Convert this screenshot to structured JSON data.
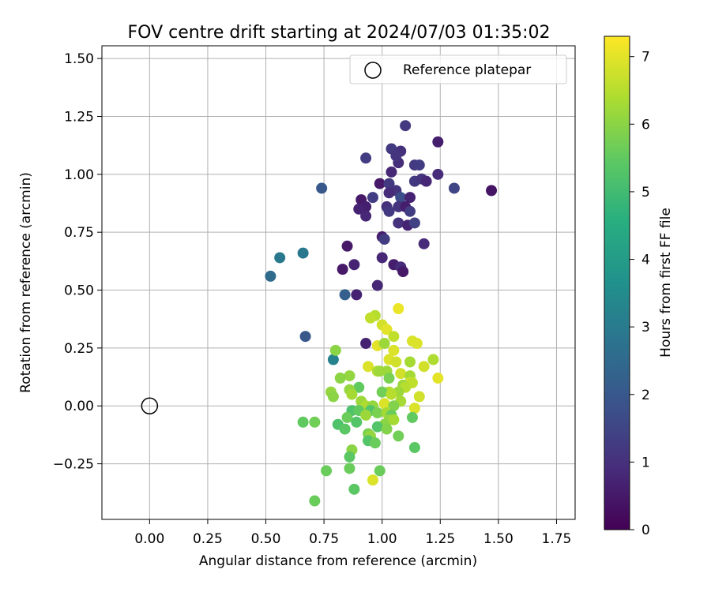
{
  "chart_data": {
    "type": "scatter",
    "title": "FOV centre drift starting at 2024/07/03 01:35:02",
    "xlabel": "Angular distance from reference (arcmin)",
    "ylabel": "Rotation from reference (arcmin)",
    "xlim": [
      -0.205,
      1.83
    ],
    "ylim": [
      -0.49,
      1.555
    ],
    "xticks": [
      "0.00",
      "0.25",
      "0.50",
      "0.75",
      "1.00",
      "1.25",
      "1.50",
      "1.75"
    ],
    "xtick_values": [
      0,
      0.25,
      0.5,
      0.75,
      1.0,
      1.25,
      1.5,
      1.75
    ],
    "yticks": [
      "−0.25",
      "0.00",
      "0.25",
      "0.50",
      "0.75",
      "1.00",
      "1.25",
      "1.50"
    ],
    "ytick_values": [
      -0.25,
      0,
      0.25,
      0.5,
      0.75,
      1.0,
      1.25,
      1.5
    ],
    "grid": true,
    "legend": {
      "position": "top-right",
      "entries": [
        "Reference platepar"
      ]
    },
    "reference_point": {
      "x": 0.0,
      "y": 0.0
    },
    "colorbar": {
      "label": "Hours from first FF file",
      "colormap": "viridis",
      "range": [
        0,
        7.3
      ],
      "ticks": [
        "0",
        "1",
        "2",
        "3",
        "4",
        "5",
        "6",
        "7"
      ],
      "tick_values": [
        0,
        1,
        2,
        3,
        4,
        5,
        6,
        7
      ]
    },
    "points": [
      {
        "x": 1.1,
        "y": 1.21,
        "c": 1.2
      },
      {
        "x": 1.24,
        "y": 1.14,
        "c": 0.6
      },
      {
        "x": 1.04,
        "y": 1.11,
        "c": 1.2
      },
      {
        "x": 1.08,
        "y": 1.1,
        "c": 1.0
      },
      {
        "x": 1.07,
        "y": 1.05,
        "c": 0.9
      },
      {
        "x": 0.93,
        "y": 1.07,
        "c": 1.3
      },
      {
        "x": 1.06,
        "y": 1.08,
        "c": 1.1
      },
      {
        "x": 1.04,
        "y": 1.01,
        "c": 0.8
      },
      {
        "x": 1.14,
        "y": 1.04,
        "c": 1.2
      },
      {
        "x": 1.16,
        "y": 1.04,
        "c": 1.3
      },
      {
        "x": 1.24,
        "y": 1.0,
        "c": 0.9
      },
      {
        "x": 1.14,
        "y": 0.97,
        "c": 1.2
      },
      {
        "x": 1.17,
        "y": 0.98,
        "c": 1.1
      },
      {
        "x": 1.19,
        "y": 0.97,
        "c": 0.8
      },
      {
        "x": 1.31,
        "y": 0.94,
        "c": 1.5
      },
      {
        "x": 0.74,
        "y": 0.94,
        "c": 2.0
      },
      {
        "x": 1.47,
        "y": 0.93,
        "c": 0.4
      },
      {
        "x": 0.99,
        "y": 0.96,
        "c": 0.5
      },
      {
        "x": 1.03,
        "y": 0.96,
        "c": 1.2
      },
      {
        "x": 1.06,
        "y": 0.93,
        "c": 1.1
      },
      {
        "x": 1.03,
        "y": 0.92,
        "c": 0.9
      },
      {
        "x": 1.08,
        "y": 0.9,
        "c": 1.7
      },
      {
        "x": 1.12,
        "y": 0.9,
        "c": 0.7
      },
      {
        "x": 0.96,
        "y": 0.9,
        "c": 1.3
      },
      {
        "x": 0.91,
        "y": 0.89,
        "c": 0.5
      },
      {
        "x": 0.93,
        "y": 0.86,
        "c": 0.6
      },
      {
        "x": 0.9,
        "y": 0.85,
        "c": 0.7
      },
      {
        "x": 1.02,
        "y": 0.86,
        "c": 1.0
      },
      {
        "x": 1.07,
        "y": 0.86,
        "c": 1.1
      },
      {
        "x": 1.1,
        "y": 0.86,
        "c": 0.6
      },
      {
        "x": 1.12,
        "y": 0.84,
        "c": 1.3
      },
      {
        "x": 0.93,
        "y": 0.82,
        "c": 0.8
      },
      {
        "x": 1.03,
        "y": 0.84,
        "c": 1.2
      },
      {
        "x": 1.07,
        "y": 0.79,
        "c": 1.0
      },
      {
        "x": 1.11,
        "y": 0.78,
        "c": 0.7
      },
      {
        "x": 1.14,
        "y": 0.79,
        "c": 1.4
      },
      {
        "x": 1.0,
        "y": 0.73,
        "c": 0.6
      },
      {
        "x": 1.01,
        "y": 0.72,
        "c": 1.3
      },
      {
        "x": 1.18,
        "y": 0.7,
        "c": 0.9
      },
      {
        "x": 0.85,
        "y": 0.69,
        "c": 0.5
      },
      {
        "x": 1.0,
        "y": 0.64,
        "c": 0.8
      },
      {
        "x": 1.05,
        "y": 0.61,
        "c": 0.6
      },
      {
        "x": 1.08,
        "y": 0.6,
        "c": 0.9
      },
      {
        "x": 1.09,
        "y": 0.58,
        "c": 0.5
      },
      {
        "x": 0.88,
        "y": 0.61,
        "c": 0.7
      },
      {
        "x": 0.83,
        "y": 0.59,
        "c": 0.5
      },
      {
        "x": 0.98,
        "y": 0.52,
        "c": 0.8
      },
      {
        "x": 0.89,
        "y": 0.48,
        "c": 0.7
      },
      {
        "x": 0.84,
        "y": 0.48,
        "c": 2.2
      },
      {
        "x": 0.66,
        "y": 0.66,
        "c": 2.9
      },
      {
        "x": 0.56,
        "y": 0.64,
        "c": 2.9
      },
      {
        "x": 0.52,
        "y": 0.56,
        "c": 2.5
      },
      {
        "x": 0.67,
        "y": 0.3,
        "c": 2.0
      },
      {
        "x": 0.93,
        "y": 0.27,
        "c": 0.7
      },
      {
        "x": 0.79,
        "y": 0.2,
        "c": 3.2
      },
      {
        "x": 1.07,
        "y": 0.42,
        "c": 7.1
      },
      {
        "x": 0.97,
        "y": 0.39,
        "c": 6.5
      },
      {
        "x": 0.95,
        "y": 0.38,
        "c": 6.6
      },
      {
        "x": 1.0,
        "y": 0.35,
        "c": 6.8
      },
      {
        "x": 1.02,
        "y": 0.33,
        "c": 7.0
      },
      {
        "x": 1.05,
        "y": 0.3,
        "c": 6.6
      },
      {
        "x": 1.13,
        "y": 0.28,
        "c": 6.9
      },
      {
        "x": 1.15,
        "y": 0.27,
        "c": 6.9
      },
      {
        "x": 0.98,
        "y": 0.26,
        "c": 7.0
      },
      {
        "x": 1.01,
        "y": 0.27,
        "c": 6.2
      },
      {
        "x": 1.05,
        "y": 0.24,
        "c": 6.9
      },
      {
        "x": 0.8,
        "y": 0.24,
        "c": 6.0
      },
      {
        "x": 1.03,
        "y": 0.2,
        "c": 6.9
      },
      {
        "x": 1.06,
        "y": 0.19,
        "c": 6.8
      },
      {
        "x": 1.12,
        "y": 0.19,
        "c": 6.3
      },
      {
        "x": 1.18,
        "y": 0.17,
        "c": 6.8
      },
      {
        "x": 1.22,
        "y": 0.2,
        "c": 6.4
      },
      {
        "x": 0.94,
        "y": 0.17,
        "c": 6.9
      },
      {
        "x": 0.98,
        "y": 0.15,
        "c": 6.4
      },
      {
        "x": 0.99,
        "y": 0.15,
        "c": 6.2
      },
      {
        "x": 1.02,
        "y": 0.15,
        "c": 6.2
      },
      {
        "x": 1.08,
        "y": 0.14,
        "c": 6.8
      },
      {
        "x": 1.12,
        "y": 0.13,
        "c": 6.3
      },
      {
        "x": 0.86,
        "y": 0.13,
        "c": 6.1
      },
      {
        "x": 0.82,
        "y": 0.12,
        "c": 6.0
      },
      {
        "x": 1.03,
        "y": 0.12,
        "c": 5.8
      },
      {
        "x": 1.24,
        "y": 0.12,
        "c": 7.0
      },
      {
        "x": 1.12,
        "y": 0.1,
        "c": 6.8
      },
      {
        "x": 1.13,
        "y": 0.1,
        "c": 6.6
      },
      {
        "x": 1.09,
        "y": 0.09,
        "c": 6.2
      },
      {
        "x": 1.1,
        "y": 0.08,
        "c": 6.5
      },
      {
        "x": 0.9,
        "y": 0.08,
        "c": 5.5
      },
      {
        "x": 0.86,
        "y": 0.07,
        "c": 6.1
      },
      {
        "x": 1.07,
        "y": 0.06,
        "c": 6.2
      },
      {
        "x": 1.03,
        "y": 0.06,
        "c": 6.4
      },
      {
        "x": 0.78,
        "y": 0.06,
        "c": 6.1
      },
      {
        "x": 1.0,
        "y": 0.06,
        "c": 5.7
      },
      {
        "x": 1.04,
        "y": 0.05,
        "c": 6.5
      },
      {
        "x": 0.87,
        "y": 0.05,
        "c": 6.3
      },
      {
        "x": 1.16,
        "y": 0.04,
        "c": 6.8
      },
      {
        "x": 0.79,
        "y": 0.04,
        "c": 6.0
      },
      {
        "x": 0.91,
        "y": 0.02,
        "c": 6.2
      },
      {
        "x": 1.08,
        "y": 0.02,
        "c": 6.3
      },
      {
        "x": 1.01,
        "y": 0.01,
        "c": 6.9
      },
      {
        "x": 0.93,
        "y": 0.0,
        "c": 6.4
      },
      {
        "x": 0.96,
        "y": 0.0,
        "c": 6.1
      },
      {
        "x": 1.05,
        "y": 0.0,
        "c": 5.9
      },
      {
        "x": 1.14,
        "y": -0.01,
        "c": 6.9
      },
      {
        "x": 0.87,
        "y": -0.02,
        "c": 5.2
      },
      {
        "x": 0.9,
        "y": -0.02,
        "c": 5.5
      },
      {
        "x": 0.95,
        "y": -0.02,
        "c": 5.3
      },
      {
        "x": 0.98,
        "y": -0.03,
        "c": 5.8
      },
      {
        "x": 1.02,
        "y": -0.03,
        "c": 6.3
      },
      {
        "x": 1.04,
        "y": -0.04,
        "c": 5.6
      },
      {
        "x": 0.93,
        "y": -0.04,
        "c": 6.2
      },
      {
        "x": 1.13,
        "y": -0.05,
        "c": 5.5
      },
      {
        "x": 0.85,
        "y": -0.05,
        "c": 5.6
      },
      {
        "x": 1.03,
        "y": -0.06,
        "c": 6.1
      },
      {
        "x": 1.05,
        "y": -0.06,
        "c": 6.3
      },
      {
        "x": 0.89,
        "y": -0.07,
        "c": 5.3
      },
      {
        "x": 0.66,
        "y": -0.07,
        "c": 5.5
      },
      {
        "x": 0.71,
        "y": -0.07,
        "c": 5.7
      },
      {
        "x": 1.01,
        "y": -0.08,
        "c": 6.0
      },
      {
        "x": 0.98,
        "y": -0.09,
        "c": 5.3
      },
      {
        "x": 1.02,
        "y": -0.1,
        "c": 5.9
      },
      {
        "x": 0.81,
        "y": -0.08,
        "c": 5.2
      },
      {
        "x": 0.84,
        "y": -0.1,
        "c": 5.4
      },
      {
        "x": 0.94,
        "y": -0.12,
        "c": 5.8
      },
      {
        "x": 0.95,
        "y": -0.13,
        "c": 6.1
      },
      {
        "x": 1.07,
        "y": -0.13,
        "c": 5.7
      },
      {
        "x": 0.94,
        "y": -0.15,
        "c": 5.3
      },
      {
        "x": 0.97,
        "y": -0.16,
        "c": 5.6
      },
      {
        "x": 1.14,
        "y": -0.18,
        "c": 5.4
      },
      {
        "x": 0.87,
        "y": -0.19,
        "c": 6.0
      },
      {
        "x": 0.86,
        "y": -0.22,
        "c": 5.4
      },
      {
        "x": 0.86,
        "y": -0.27,
        "c": 5.6
      },
      {
        "x": 0.76,
        "y": -0.28,
        "c": 5.6
      },
      {
        "x": 0.99,
        "y": -0.28,
        "c": 5.6
      },
      {
        "x": 0.96,
        "y": -0.32,
        "c": 6.9
      },
      {
        "x": 0.88,
        "y": -0.36,
        "c": 5.4
      },
      {
        "x": 0.71,
        "y": -0.41,
        "c": 5.6
      }
    ]
  }
}
